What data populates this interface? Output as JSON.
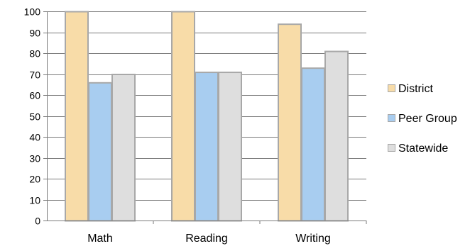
{
  "chart_data": {
    "type": "bar",
    "title": "",
    "xlabel": "",
    "ylabel": "",
    "categories": [
      "Math",
      "Reading",
      "Writing"
    ],
    "series": [
      {
        "name": "District",
        "values": [
          100,
          100,
          94
        ],
        "color": "#f8dca8",
        "stroke": "#a8a8a8"
      },
      {
        "name": "Peer Group",
        "values": [
          66,
          71,
          73
        ],
        "color": "#a8cdf0",
        "stroke": "#a8a8a8"
      },
      {
        "name": "Statewide",
        "values": [
          70,
          71,
          81
        ],
        "color": "#dedede",
        "stroke": "#a8a8a8"
      }
    ],
    "ylim": [
      0,
      100
    ],
    "yticks": [
      "0",
      "10",
      "20",
      "30",
      "40",
      "50",
      "60",
      "70",
      "80",
      "90",
      "100"
    ],
    "grid": true,
    "grid_color": "#7a7a7a",
    "legend_position": "right"
  }
}
